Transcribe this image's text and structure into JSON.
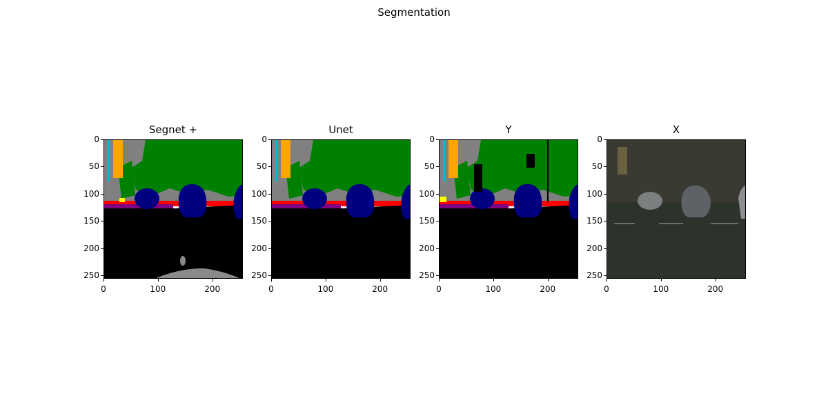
{
  "suptitle": "Segmentation",
  "chart_data": [
    {
      "type": "heatmap",
      "title": "Segnet +",
      "xlabel": "",
      "ylabel": "",
      "xlim": [
        0,
        255
      ],
      "ylim": [
        255,
        0
      ],
      "xticks": [
        "0",
        "100",
        "200"
      ],
      "yticks": [
        "0",
        "50",
        "100",
        "150",
        "200",
        "250"
      ]
    },
    {
      "type": "heatmap",
      "title": "Unet",
      "xlabel": "",
      "ylabel": "",
      "xlim": [
        0,
        255
      ],
      "ylim": [
        255,
        0
      ],
      "xticks": [
        "0",
        "100",
        "200"
      ],
      "yticks": [
        "0",
        "50",
        "100",
        "150",
        "200",
        "250"
      ]
    },
    {
      "type": "heatmap",
      "title": "Y",
      "xlabel": "",
      "ylabel": "",
      "xlim": [
        0,
        255
      ],
      "ylim": [
        255,
        0
      ],
      "xticks": [
        "0",
        "100",
        "200"
      ],
      "yticks": [
        "0",
        "50",
        "100",
        "150",
        "200",
        "250"
      ]
    },
    {
      "type": "heatmap",
      "title": "X",
      "xlabel": "",
      "ylabel": "",
      "xlim": [
        0,
        255
      ],
      "ylim": [
        255,
        0
      ],
      "xticks": [
        "0",
        "100",
        "200"
      ],
      "yticks": [
        "0",
        "50",
        "100",
        "150",
        "200",
        "250"
      ]
    }
  ],
  "colors": {
    "vegetation": "#008000",
    "building": "#808080",
    "car": "#000080",
    "road": "#000000",
    "sidewalk": "#ff0000",
    "pole": "#ffa500",
    "sidewalk2": "#800080",
    "photo_bg": "#3a4035"
  }
}
